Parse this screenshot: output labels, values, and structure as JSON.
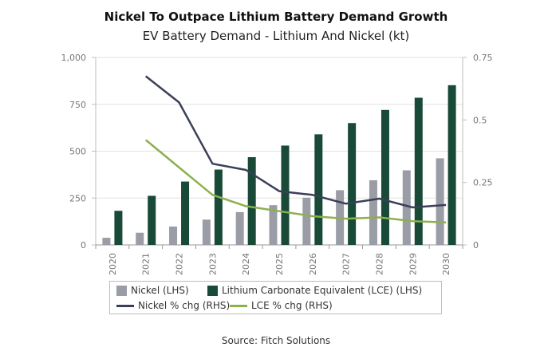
{
  "chart_data": {
    "type": "bar-line-combo",
    "title": "Nickel To Outpace Lithium Battery Demand Growth",
    "subtitle": "EV Battery Demand - Lithium And Nickel (kt)",
    "categories": [
      "2020",
      "2021",
      "2022",
      "2023",
      "2024",
      "2025",
      "2026",
      "2027",
      "2028",
      "2029",
      "2030"
    ],
    "left_axis": {
      "ylim": [
        0,
        1000
      ],
      "ticks": [
        0,
        250,
        500,
        750,
        1000
      ],
      "tick_labels": [
        "0",
        "250",
        "500",
        "750",
        "1,000"
      ]
    },
    "right_axis": {
      "ylim": [
        0,
        0.75
      ],
      "ticks": [
        0,
        0.25,
        0.5,
        0.75
      ],
      "tick_labels": [
        "0",
        "0.25",
        "0.5",
        "0.75"
      ]
    },
    "series": [
      {
        "name": "Nickel (LHS)",
        "kind": "bar",
        "axis": "left",
        "color": "#9a9ca6",
        "values": [
          38,
          65,
          98,
          135,
          175,
          212,
          252,
          292,
          345,
          398,
          462
        ]
      },
      {
        "name": "Lithium Carbonate Equivalent (LCE) (LHS)",
        "kind": "bar",
        "axis": "left",
        "color": "#184a37",
        "values": [
          182,
          262,
          338,
          402,
          468,
          530,
          590,
          650,
          720,
          785,
          852
        ]
      },
      {
        "name": "Nickel % chg (RHS)",
        "kind": "line",
        "axis": "right",
        "color": "#3a3f58",
        "values": [
          null,
          0.675,
          0.57,
          0.325,
          0.3,
          0.215,
          0.2,
          0.165,
          0.185,
          0.15,
          0.16
        ]
      },
      {
        "name": "LCE % chg (RHS)",
        "kind": "line",
        "axis": "right",
        "color": "#8db04e",
        "values": [
          null,
          0.42,
          0.31,
          0.2,
          0.155,
          0.135,
          0.115,
          0.105,
          0.11,
          0.095,
          0.09
        ]
      }
    ],
    "legend_position": "bottom-center",
    "source": "Source: Fitch Solutions"
  }
}
